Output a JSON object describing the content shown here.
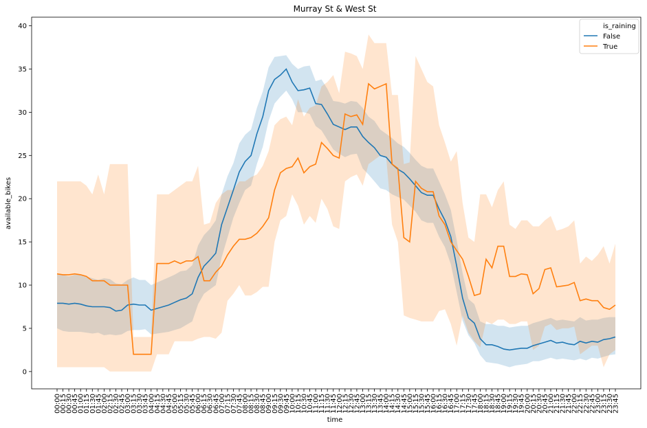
{
  "chart_data": {
    "type": "line",
    "title": "Murray St & West St",
    "xlabel": "time",
    "ylabel": "available_bikes",
    "ylim": [
      -2,
      41
    ],
    "yticks": [
      0,
      5,
      10,
      15,
      20,
      25,
      30,
      35,
      40
    ],
    "legend": {
      "title": "is_raining",
      "placement": "top-right",
      "entries": [
        "False",
        "True"
      ]
    },
    "categories": [
      "00:00",
      "00:15",
      "00:30",
      "00:45",
      "01:00",
      "01:15",
      "01:30",
      "01:45",
      "02:00",
      "02:15",
      "02:30",
      "02:45",
      "03:00",
      "03:15",
      "03:30",
      "03:45",
      "04:00",
      "04:15",
      "04:30",
      "04:45",
      "05:00",
      "05:15",
      "05:30",
      "05:45",
      "06:00",
      "06:15",
      "06:30",
      "06:45",
      "07:00",
      "07:15",
      "07:30",
      "07:45",
      "08:00",
      "08:15",
      "08:30",
      "08:45",
      "09:00",
      "09:15",
      "09:30",
      "09:45",
      "10:00",
      "10:15",
      "10:30",
      "10:45",
      "11:00",
      "11:15",
      "11:30",
      "11:45",
      "12:00",
      "12:15",
      "12:30",
      "12:45",
      "13:00",
      "13:15",
      "13:30",
      "13:45",
      "14:00",
      "14:15",
      "14:30",
      "14:45",
      "15:00",
      "15:15",
      "15:30",
      "15:45",
      "16:00",
      "16:15",
      "16:30",
      "16:45",
      "17:00",
      "17:15",
      "17:30",
      "17:45",
      "18:00",
      "18:15",
      "18:30",
      "18:45",
      "19:00",
      "19:15",
      "19:30",
      "19:45",
      "20:00",
      "20:15",
      "20:30",
      "20:45",
      "21:00",
      "21:15",
      "21:30",
      "21:45",
      "22:00",
      "22:15",
      "22:30",
      "22:45",
      "23:00",
      "23:15",
      "23:30",
      "23:45"
    ],
    "series": [
      {
        "name": "False",
        "color": "#1f77b4",
        "values": [
          7.9,
          7.9,
          7.8,
          7.9,
          7.8,
          7.6,
          7.5,
          7.5,
          7.5,
          7.4,
          7.0,
          7.1,
          7.7,
          7.8,
          7.7,
          7.7,
          7.1,
          7.3,
          7.5,
          7.7,
          8.0,
          8.3,
          8.5,
          9.0,
          10.9,
          12.2,
          12.9,
          13.7,
          17.0,
          19.0,
          21.0,
          23.1,
          24.3,
          25.0,
          27.5,
          29.5,
          32.5,
          33.8,
          34.3,
          35.0,
          33.5,
          32.5,
          32.6,
          32.8,
          31.0,
          30.9,
          29.8,
          28.6,
          28.3,
          28.0,
          28.3,
          28.3,
          27.2,
          26.5,
          25.9,
          25.0,
          24.8,
          24.0,
          23.4,
          23.0,
          22.3,
          21.5,
          20.7,
          20.4,
          20.4,
          18.8,
          17.5,
          15.6,
          12.2,
          8.5,
          6.2,
          5.6,
          3.8,
          3.1,
          3.1,
          2.9,
          2.6,
          2.5,
          2.6,
          2.7,
          2.7,
          3.0,
          3.2,
          3.4,
          3.6,
          3.3,
          3.4,
          3.2,
          3.1,
          3.5,
          3.3,
          3.5,
          3.4,
          3.7,
          3.8,
          4.0
        ],
        "lower": [
          5.0,
          4.7,
          4.6,
          4.6,
          4.6,
          4.5,
          4.4,
          4.5,
          4.2,
          4.3,
          4.2,
          4.3,
          4.7,
          4.8,
          4.8,
          4.9,
          4.3,
          4.4,
          4.5,
          4.6,
          4.8,
          5.0,
          5.4,
          5.8,
          7.8,
          9.0,
          9.5,
          10.0,
          13.2,
          15.5,
          17.8,
          19.5,
          21.0,
          21.5,
          24.0,
          26.0,
          29.0,
          31.0,
          31.8,
          32.5,
          31.5,
          30.0,
          30.0,
          29.8,
          28.4,
          27.9,
          26.8,
          25.7,
          25.2,
          24.8,
          25.1,
          25.2,
          23.5,
          22.8,
          22.0,
          21.2,
          21.0,
          20.5,
          20.2,
          19.9,
          19.2,
          18.5,
          17.5,
          17.2,
          17.2,
          15.6,
          14.4,
          12.4,
          9.2,
          5.9,
          4.2,
          3.3,
          1.9,
          1.1,
          1.0,
          0.9,
          0.7,
          0.5,
          0.7,
          0.8,
          0.9,
          1.2,
          1.2,
          1.4,
          1.6,
          1.4,
          1.5,
          1.4,
          1.3,
          1.5,
          1.3,
          1.6,
          1.5,
          1.7,
          1.9,
          2.0
        ],
        "upper": [
          11.2,
          11.2,
          11.0,
          11.2,
          11.2,
          11.0,
          10.8,
          10.6,
          10.8,
          10.7,
          10.2,
          10.1,
          10.6,
          10.9,
          10.6,
          10.6,
          10.0,
          10.3,
          10.6,
          10.9,
          11.2,
          11.6,
          11.7,
          12.3,
          14.6,
          15.8,
          16.5,
          17.5,
          20.5,
          22.6,
          24.1,
          26.4,
          27.4,
          28.0,
          30.5,
          32.4,
          35.2,
          36.4,
          36.5,
          36.6,
          35.6,
          35.0,
          35.3,
          35.4,
          33.6,
          33.8,
          32.7,
          31.3,
          31.2,
          31.0,
          31.3,
          31.2,
          30.5,
          29.5,
          29.0,
          28.0,
          27.5,
          27.0,
          26.4,
          26.0,
          25.3,
          24.5,
          23.8,
          23.5,
          23.5,
          22.0,
          20.5,
          18.7,
          15.2,
          11.4,
          8.4,
          7.8,
          5.8,
          5.5,
          5.5,
          5.3,
          5.3,
          5.1,
          5.2,
          5.3,
          5.3,
          5.6,
          5.8,
          6.0,
          6.2,
          5.9,
          6.0,
          5.9,
          5.8,
          6.3,
          5.9,
          6.0,
          6.0,
          6.2,
          6.3,
          6.3
        ]
      },
      {
        "name": "True",
        "color": "#ff7f0e",
        "values": [
          11.3,
          11.2,
          11.2,
          11.3,
          11.2,
          11.0,
          10.5,
          10.5,
          10.5,
          10.0,
          10.0,
          10.0,
          10.0,
          2.0,
          2.0,
          2.0,
          2.0,
          12.5,
          12.5,
          12.5,
          12.8,
          12.5,
          12.8,
          12.8,
          13.3,
          10.5,
          10.5,
          11.5,
          12.2,
          13.5,
          14.5,
          15.3,
          15.3,
          15.5,
          16.0,
          16.8,
          17.8,
          21.0,
          23.0,
          23.5,
          23.7,
          24.7,
          23.0,
          23.7,
          24.0,
          26.5,
          25.8,
          25.0,
          24.7,
          29.8,
          29.5,
          29.7,
          28.6,
          33.3,
          32.7,
          33.0,
          33.3,
          24.0,
          23.5,
          15.5,
          15.0,
          22.0,
          21.2,
          20.8,
          20.8,
          18.0,
          17.0,
          15.0,
          14.0,
          13.0,
          11.0,
          8.8,
          9.0,
          13.0,
          12.0,
          14.5,
          14.5,
          11.0,
          11.0,
          11.3,
          11.2,
          9.0,
          9.6,
          11.8,
          12.0,
          9.8,
          9.9,
          10.0,
          10.3,
          8.2,
          8.4,
          8.2,
          8.2,
          7.4,
          7.2,
          7.7
        ],
        "lower": [
          0.5,
          0.5,
          0.5,
          0.5,
          0.5,
          0.5,
          0.5,
          0.5,
          0.5,
          0.0,
          0.0,
          0.0,
          0.0,
          0.0,
          0.0,
          0.0,
          0.0,
          2.0,
          2.0,
          2.0,
          3.5,
          3.5,
          3.5,
          3.5,
          3.8,
          4.0,
          4.0,
          3.8,
          4.5,
          8.2,
          9.0,
          10.0,
          8.8,
          8.8,
          9.2,
          9.8,
          9.8,
          15.0,
          17.5,
          18.0,
          20.5,
          19.2,
          17.0,
          18.0,
          17.2,
          20.0,
          18.8,
          16.8,
          16.5,
          22.0,
          22.5,
          22.8,
          21.5,
          24.0,
          24.5,
          25.0,
          24.8,
          17.0,
          15.0,
          6.5,
          6.2,
          6.0,
          5.8,
          5.8,
          5.8,
          7.0,
          7.2,
          5.5,
          3.0,
          6.5,
          4.5,
          3.5,
          2.8,
          5.8,
          5.5,
          6.0,
          6.0,
          5.5,
          5.5,
          5.8,
          5.8,
          2.5,
          3.0,
          5.2,
          5.5,
          4.8,
          5.0,
          5.0,
          5.2,
          2.0,
          2.5,
          3.0,
          3.0,
          0.5,
          2.0,
          2.5
        ],
        "upper": [
          22.0,
          22.0,
          22.0,
          22.0,
          22.0,
          21.5,
          20.5,
          22.8,
          20.5,
          24.0,
          24.0,
          24.0,
          24.0,
          4.0,
          4.0,
          4.0,
          4.0,
          20.5,
          20.5,
          20.5,
          21.0,
          21.5,
          22.0,
          22.0,
          23.8,
          17.0,
          17.2,
          19.5,
          20.5,
          21.0,
          21.0,
          22.0,
          22.0,
          22.5,
          22.8,
          23.8,
          25.5,
          28.5,
          29.2,
          29.5,
          28.5,
          31.5,
          29.5,
          30.5,
          30.8,
          33.0,
          33.5,
          34.3,
          32.2,
          37.0,
          36.8,
          36.5,
          35.0,
          39.0,
          38.0,
          38.0,
          38.0,
          32.0,
          32.0,
          24.0,
          24.2,
          36.5,
          35.0,
          33.5,
          33.0,
          28.5,
          26.5,
          24.3,
          25.5,
          19.5,
          15.5,
          15.0,
          20.5,
          20.5,
          19.0,
          21.0,
          22.0,
          17.0,
          16.5,
          17.5,
          17.5,
          16.8,
          16.8,
          17.5,
          18.0,
          16.3,
          16.5,
          16.8,
          17.5,
          12.5,
          13.3,
          12.8,
          13.5,
          14.5,
          12.5,
          14.8
        ]
      }
    ]
  }
}
